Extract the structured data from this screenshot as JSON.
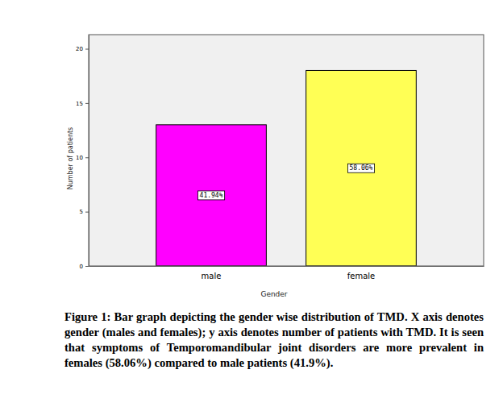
{
  "chart_data": {
    "type": "bar",
    "x_label": "Gender",
    "y_label": "Number of patients",
    "categories": [
      "male",
      "female"
    ],
    "values": [
      13,
      18
    ],
    "colors": [
      "#ff00ff",
      "#ffff55"
    ],
    "annotations": [
      "41.94%",
      "58.06%"
    ],
    "ylim": [
      0,
      21.3
    ],
    "yticks": [
      0,
      5,
      10,
      15,
      20
    ],
    "grid": false,
    "caption": "Figure 1: Bar graph depicting the gender wise distribution of TMD. X axis denotes gender (males and females); y axis denotes number of patients with TMD.  It is seen that symptoms of  Temporomandibular joint disorders are  more prevalent in females (58.06%) compared to male patients (41.9%)."
  }
}
